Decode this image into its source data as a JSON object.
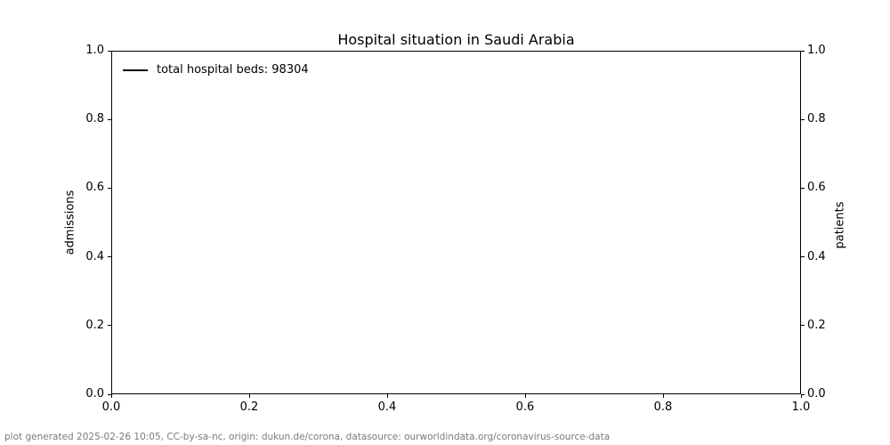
{
  "chart_data": {
    "type": "line",
    "title": "Hospital situation in Saudi Arabia",
    "xlabel": "",
    "ylabel_left": "admissions",
    "ylabel_right": "patients",
    "xlim": [
      0.0,
      1.0
    ],
    "ylim_left": [
      0.0,
      1.0
    ],
    "ylim_right": [
      0.0,
      1.0
    ],
    "x_ticks": [
      "0.0",
      "0.2",
      "0.4",
      "0.6",
      "0.8",
      "1.0"
    ],
    "y_ticks_left": [
      "0.0",
      "0.2",
      "0.4",
      "0.6",
      "0.8",
      "1.0"
    ],
    "y_ticks_right": [
      "0.0",
      "0.2",
      "0.4",
      "0.6",
      "0.8",
      "1.0"
    ],
    "grid": false,
    "legend_position": "upper-left",
    "legend": [
      {
        "label": "total hospital beds: 98304",
        "color": "#000000",
        "style": "solid-line"
      }
    ],
    "series": [],
    "total_hospital_beds": 98304
  },
  "footer": {
    "text": "plot generated 2025-02-26 10:05, CC-by-sa-nc, origin: dukun.de/corona, datasource: ourworldindata.org/coronavirus-source-data",
    "color": "#7a7a7a"
  },
  "colors": {
    "axes": "#000000",
    "background": "#ffffff"
  }
}
